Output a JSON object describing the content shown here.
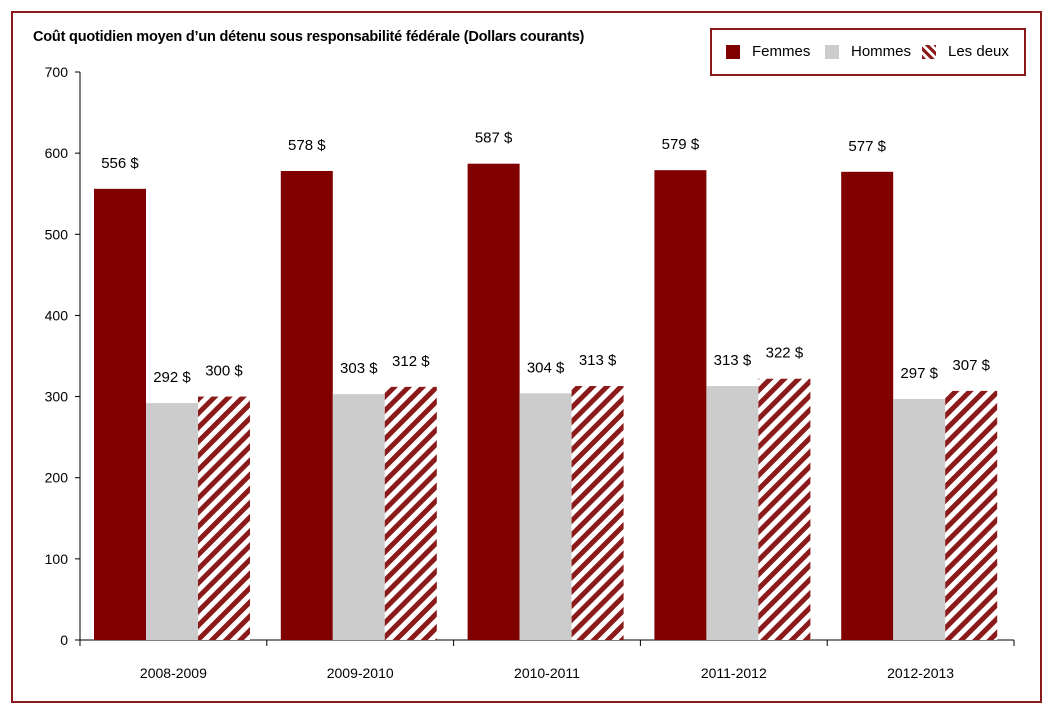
{
  "chart_data": {
    "type": "bar",
    "title": "Coût quotidien moyen d’un détenu sous responsabilité fédérale (Dollars courants)",
    "categories": [
      "2008-2009",
      "2009-2010",
      "2010-2011",
      "2011-2012",
      "2012-2013"
    ],
    "series": [
      {
        "name": "Femmes",
        "values": [
          556,
          578,
          587,
          579,
          577
        ],
        "color": "#800000",
        "pattern": "solid",
        "labels": [
          "556 $",
          "578 $",
          "587 $",
          "579 $",
          "577 $"
        ]
      },
      {
        "name": "Hommes",
        "values": [
          292,
          303,
          304,
          313,
          297
        ],
        "color": "#cccccc",
        "pattern": "solid",
        "labels": [
          "292 $",
          "303 $",
          "304 $",
          "313 $",
          "297 $"
        ]
      },
      {
        "name": "Les deux",
        "values": [
          300,
          312,
          313,
          322,
          307
        ],
        "color": "#8b1a1a",
        "pattern": "diagonal-stripes",
        "labels": [
          "300 $",
          "312 $",
          "313 $",
          "322 $",
          "307 $"
        ]
      }
    ],
    "ylim": [
      0,
      700
    ],
    "yticks": [
      0,
      100,
      200,
      300,
      400,
      500,
      600,
      700
    ],
    "ytick_labels": [
      "0",
      "100",
      "200",
      "300",
      "400",
      "500",
      "600",
      "700"
    ],
    "grid": false,
    "legend_position": "top-right"
  }
}
